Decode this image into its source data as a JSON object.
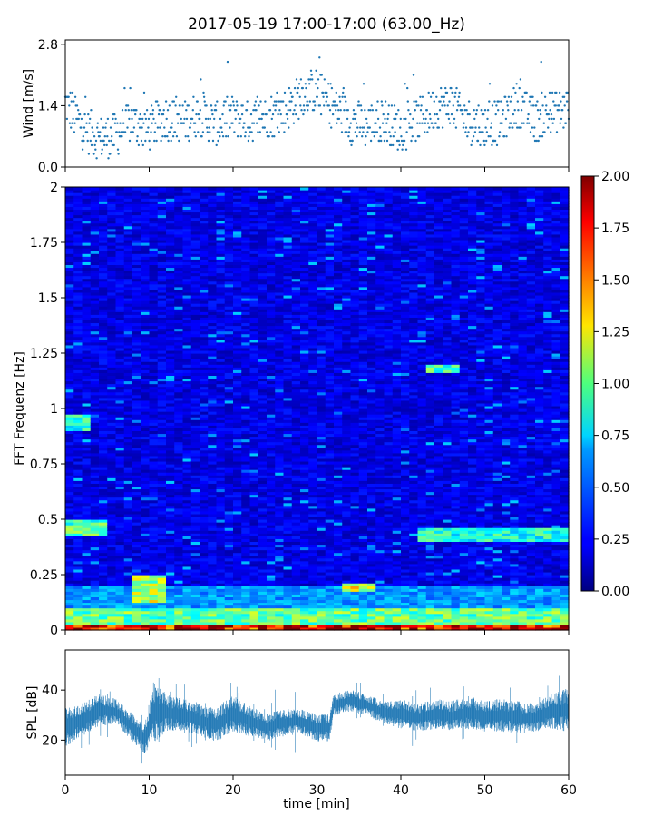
{
  "title": "2017-05-19 17:00-17:00 (63.00_Hz)",
  "chart_data": [
    {
      "type": "scatter",
      "panel": "wind",
      "ylabel": "Wind [m/s]",
      "ylim": [
        0,
        2.9
      ],
      "yticks": [
        "0.0",
        "1.4",
        "2.8"
      ],
      "xlim": [
        0,
        60
      ],
      "color": "#1f77b4",
      "series": [
        {
          "x": [
            0,
            2,
            4,
            6,
            8,
            10,
            12,
            14,
            16,
            18,
            20,
            22,
            24,
            26,
            28,
            30,
            32,
            34,
            36,
            38,
            40,
            42,
            44,
            46,
            48,
            50,
            52,
            54,
            56,
            58,
            60
          ],
          "values": [
            1.3,
            0.8,
            0.5,
            0.6,
            0.9,
            0.7,
            1.0,
            0.9,
            1.1,
            0.8,
            1.0,
            0.9,
            1.0,
            1.1,
            1.5,
            1.6,
            1.2,
            0.9,
            0.8,
            0.9,
            0.7,
            0.9,
            1.2,
            1.3,
            0.9,
            0.8,
            0.9,
            1.3,
            0.9,
            1.1,
            1.2
          ]
        }
      ]
    },
    {
      "type": "heatmap",
      "panel": "spectrogram",
      "ylabel": "FFT Frequenz [Hz]",
      "ylim": [
        0,
        2
      ],
      "yticks": [
        "0",
        "0.25",
        "0.5",
        "0.75",
        "1",
        "1.25",
        "1.5",
        "1.75",
        "2"
      ],
      "xlim": [
        0,
        60
      ],
      "colorscale": "jet",
      "colorbar": {
        "range": [
          0,
          2
        ],
        "ticks": [
          "0.00",
          "0.25",
          "0.50",
          "0.75",
          "1.00",
          "1.25",
          "1.50",
          "1.75",
          "2.00"
        ]
      },
      "base_level": 0.2,
      "features": [
        {
          "t0": 0,
          "t1": 60,
          "f0": 0,
          "f1": 0.03,
          "level": 1.8
        },
        {
          "t0": 0,
          "t1": 60,
          "f0": 0.03,
          "f1": 0.1,
          "level": 0.95
        },
        {
          "t0": 0,
          "t1": 60,
          "f0": 0.1,
          "f1": 0.2,
          "level": 0.55
        },
        {
          "t0": 0,
          "t1": 5,
          "f0": 0.42,
          "f1": 0.5,
          "level": 0.9
        },
        {
          "t0": 0,
          "t1": 3,
          "f0": 0.9,
          "f1": 0.98,
          "level": 0.8
        },
        {
          "t0": 8,
          "t1": 12,
          "f0": 0.12,
          "f1": 0.25,
          "level": 1.1
        },
        {
          "t0": 33,
          "t1": 37,
          "f0": 0.18,
          "f1": 0.21,
          "level": 1.2
        },
        {
          "t0": 42,
          "t1": 60,
          "f0": 0.4,
          "f1": 0.46,
          "level": 0.8
        },
        {
          "t0": 43,
          "t1": 47,
          "f0": 1.16,
          "f1": 1.2,
          "level": 0.9
        }
      ]
    },
    {
      "type": "area",
      "panel": "spl",
      "ylabel": "SPL [dB]",
      "xlabel": "time [min]",
      "ylim": [
        6,
        56
      ],
      "yticks": [
        "20",
        "40"
      ],
      "xlim": [
        0,
        60
      ],
      "xticks": [
        "0",
        "10",
        "20",
        "30",
        "40",
        "50",
        "60"
      ],
      "color": "#1f77b4",
      "series": [
        {
          "x": [
            0,
            2,
            4,
            6,
            8,
            9.5,
            10.5,
            12,
            14,
            16,
            18,
            20,
            22,
            24,
            26,
            28,
            30,
            31.5,
            32,
            34,
            36,
            38,
            40,
            42,
            44,
            46,
            48,
            50,
            52,
            54,
            56,
            58,
            60
          ],
          "low": [
            18,
            22,
            26,
            27,
            20,
            15,
            20,
            24,
            24,
            22,
            20,
            24,
            22,
            20,
            22,
            23,
            20,
            20,
            30,
            32,
            30,
            27,
            25,
            24,
            25,
            24,
            25,
            24,
            24,
            23,
            24,
            25,
            24
          ],
          "high": [
            32,
            34,
            38,
            36,
            30,
            26,
            42,
            38,
            36,
            34,
            32,
            38,
            33,
            30,
            32,
            32,
            30,
            30,
            38,
            40,
            38,
            35,
            36,
            34,
            36,
            35,
            37,
            35,
            36,
            35,
            34,
            38,
            40
          ]
        }
      ]
    }
  ]
}
